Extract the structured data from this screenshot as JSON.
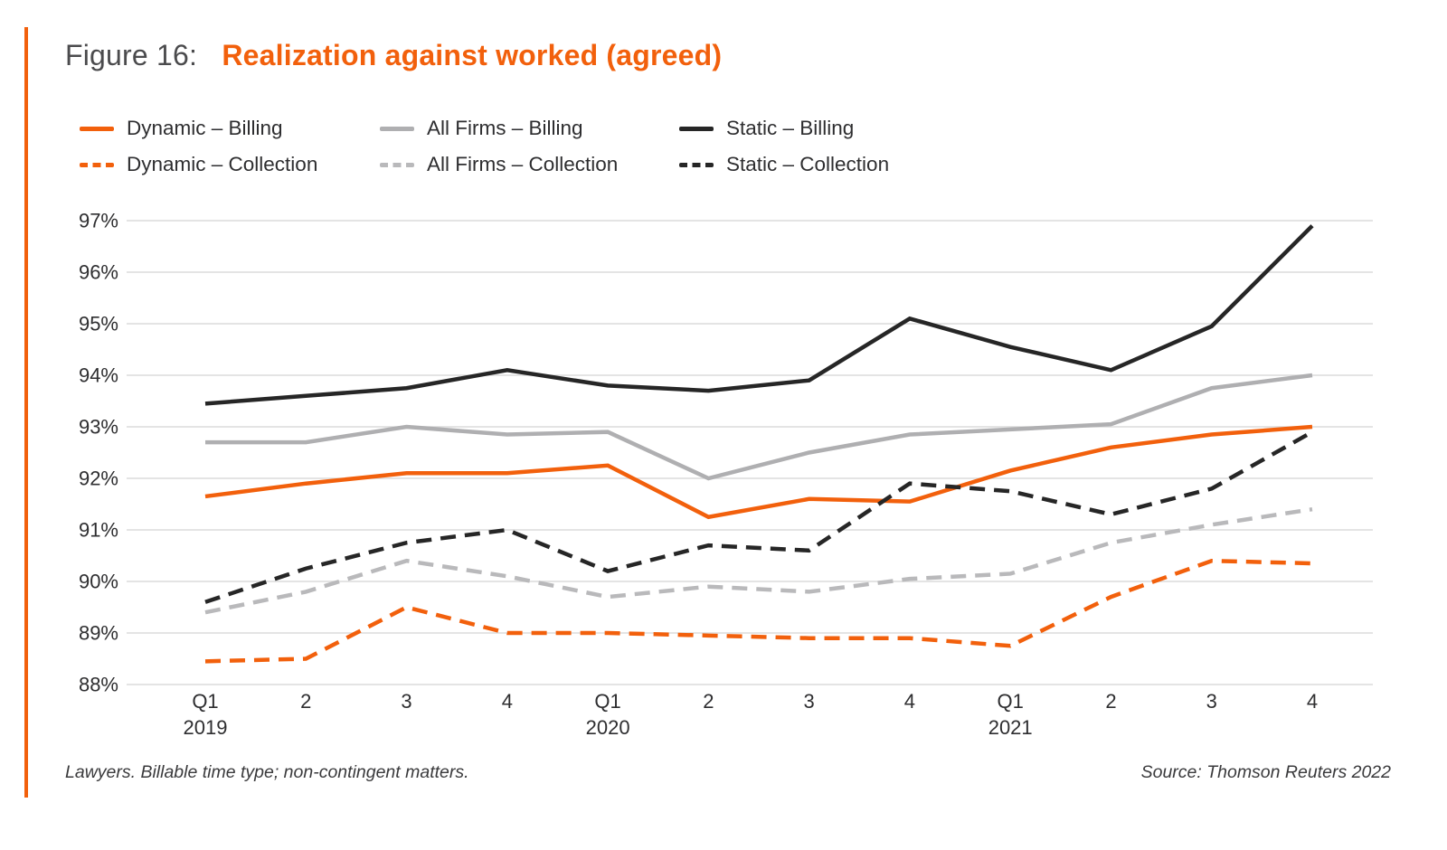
{
  "figure": {
    "label": "Figure 16:",
    "title": "Realization against worked (agreed)"
  },
  "legend": [
    {
      "name": "Dynamic – Billing",
      "color": "#F2600C",
      "dash": false
    },
    {
      "name": "All Firms – Billing",
      "color": "#AFAFB1",
      "dash": false
    },
    {
      "name": "Static – Billing",
      "color": "#262626",
      "dash": false
    },
    {
      "name": "Dynamic – Collection",
      "color": "#F2600C",
      "dash": true
    },
    {
      "name": "All Firms – Collection",
      "color": "#B9B9BB",
      "dash": true
    },
    {
      "name": "Static – Collection",
      "color": "#262626",
      "dash": true
    }
  ],
  "chart_data": {
    "type": "line",
    "title": "Realization against worked (agreed)",
    "x_labels": [
      "Q1",
      "2",
      "3",
      "4",
      "Q1",
      "2",
      "3",
      "4",
      "Q1",
      "2",
      "3",
      "4"
    ],
    "x_years": [
      {
        "index": 0,
        "year": "2019"
      },
      {
        "index": 4,
        "year": "2020"
      },
      {
        "index": 8,
        "year": "2021"
      }
    ],
    "ylim": [
      88,
      97
    ],
    "ytick_step": 1,
    "ytick_suffix": "%",
    "grid": true,
    "legend_position": "top",
    "series": [
      {
        "name": "Static – Billing",
        "color": "#262626",
        "dash": false,
        "values": [
          93.45,
          93.6,
          93.75,
          94.1,
          93.8,
          93.7,
          93.9,
          95.1,
          94.55,
          94.1,
          94.95,
          96.9
        ]
      },
      {
        "name": "All Firms – Billing",
        "color": "#AFAFB1",
        "dash": false,
        "values": [
          92.7,
          92.7,
          93.0,
          92.85,
          92.9,
          92.0,
          92.5,
          92.85,
          92.95,
          93.05,
          93.75,
          94.0
        ]
      },
      {
        "name": "Dynamic – Billing",
        "color": "#F2600C",
        "dash": false,
        "values": [
          91.65,
          91.9,
          92.1,
          92.1,
          92.25,
          91.25,
          91.6,
          91.55,
          92.15,
          92.6,
          92.85,
          93.0
        ]
      },
      {
        "name": "Static – Collection",
        "color": "#262626",
        "dash": true,
        "values": [
          89.6,
          90.25,
          90.75,
          91.0,
          90.2,
          90.7,
          90.6,
          91.9,
          91.75,
          91.3,
          91.8,
          92.9
        ]
      },
      {
        "name": "All Firms – Collection",
        "color": "#B9B9BB",
        "dash": true,
        "values": [
          89.4,
          89.8,
          90.4,
          90.1,
          89.7,
          89.9,
          89.8,
          90.05,
          90.15,
          90.75,
          91.1,
          91.4
        ]
      },
      {
        "name": "Dynamic – Collection",
        "color": "#F2600C",
        "dash": true,
        "values": [
          88.45,
          88.5,
          89.5,
          89.0,
          89.0,
          88.95,
          88.9,
          88.9,
          88.75,
          89.7,
          90.4,
          90.35
        ]
      }
    ]
  },
  "footnote": "Lawyers. Billable time type; non-contingent matters.",
  "source": "Source: Thomson Reuters 2022",
  "colors": {
    "accent": "#F2600C",
    "grid": "#DBDBDB",
    "axis_text": "#2E2E30",
    "title_gray": "#4B4B4D"
  }
}
